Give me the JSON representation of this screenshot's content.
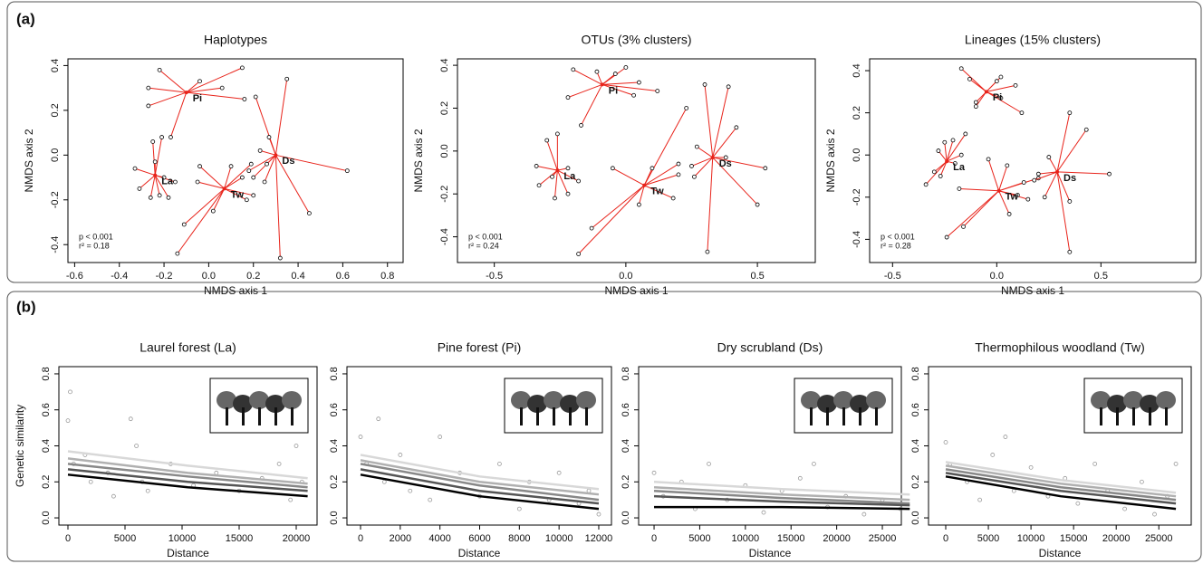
{
  "panel_labels": [
    "(a)",
    "(b)"
  ],
  "chart_data": [
    {
      "type": "nmds",
      "title": "Haplotypes",
      "xlabel": "NMDS axis 1",
      "ylabel": "NMDS axis 2",
      "color": "#e8231a",
      "xlim": [
        -0.63,
        0.87
      ],
      "ylim": [
        -0.48,
        0.43
      ],
      "xticks": [
        -0.6,
        -0.4,
        -0.2,
        {
          "value": 0,
          "label": "0.0"
        },
        0.2,
        0.4,
        0.6,
        0.8
      ],
      "yticks": [
        -0.4,
        -0.2,
        {
          "value": 0,
          "label": "0.0"
        },
        0.2,
        0.4
      ],
      "annotations": [
        "p < 0.001",
        "r² = 0.18"
      ],
      "groups": [
        {
          "name": "Pi",
          "centroid": [
            -0.1,
            0.28
          ],
          "x": [
            -0.22,
            0.15,
            -0.27,
            -0.27,
            0.06,
            0.16,
            -0.04,
            -0.17
          ],
          "y": [
            0.38,
            0.39,
            0.3,
            0.22,
            0.3,
            0.25,
            0.33,
            0.08
          ]
        },
        {
          "name": "La",
          "centroid": [
            -0.24,
            -0.09
          ],
          "x": [
            -0.25,
            -0.21,
            -0.33,
            -0.31,
            -0.26,
            -0.22,
            -0.18,
            -0.15,
            -0.2,
            -0.24
          ],
          "y": [
            0.06,
            0.08,
            -0.06,
            -0.15,
            -0.19,
            -0.18,
            -0.19,
            -0.12,
            -0.1,
            -0.03
          ]
        },
        {
          "name": "Tw",
          "centroid": [
            0.07,
            -0.15
          ],
          "x": [
            -0.04,
            0.1,
            0.19,
            -0.11,
            -0.14,
            0.17,
            0.02,
            -0.05,
            0.15,
            0.2
          ],
          "y": [
            -0.05,
            -0.05,
            -0.04,
            -0.31,
            -0.44,
            -0.2,
            -0.25,
            -0.12,
            -0.1,
            -0.18
          ]
        },
        {
          "name": "Ds",
          "centroid": [
            0.3,
            0.0
          ],
          "x": [
            0.21,
            0.35,
            0.62,
            0.45,
            0.32,
            0.25,
            0.2,
            0.26,
            0.18,
            0.23,
            0.27
          ],
          "y": [
            0.26,
            0.34,
            -0.07,
            -0.26,
            -0.46,
            -0.12,
            -0.1,
            -0.04,
            -0.07,
            0.02,
            0.08
          ]
        }
      ]
    },
    {
      "type": "nmds",
      "title": "OTUs (3% clusters)",
      "xlabel": "NMDS axis 1",
      "ylabel": "NMDS axis 2",
      "color": "#e8231a",
      "xlim": [
        -0.64,
        0.72
      ],
      "ylim": [
        -0.52,
        0.43
      ],
      "xticks": [
        -0.5,
        {
          "value": 0,
          "label": "0.0"
        },
        0.5
      ],
      "yticks": [
        -0.4,
        -0.2,
        {
          "value": 0,
          "label": "0.0"
        },
        0.2,
        0.4
      ],
      "annotations": [
        "p < 0.001",
        "r² = 0.24"
      ],
      "groups": [
        {
          "name": "Pi",
          "centroid": [
            -0.09,
            0.31
          ],
          "x": [
            -0.2,
            0.0,
            -0.22,
            -0.11,
            0.05,
            0.12,
            -0.04,
            -0.17,
            0.03
          ],
          "y": [
            0.38,
            0.39,
            0.25,
            0.37,
            0.32,
            0.28,
            0.36,
            0.12,
            0.26
          ]
        },
        {
          "name": "La",
          "centroid": [
            -0.26,
            -0.09
          ],
          "x": [
            -0.3,
            -0.26,
            -0.34,
            -0.33,
            -0.27,
            -0.22,
            -0.18,
            -0.22,
            -0.28
          ],
          "y": [
            0.05,
            0.08,
            -0.07,
            -0.16,
            -0.22,
            -0.2,
            -0.14,
            -0.08,
            -0.12
          ]
        },
        {
          "name": "Tw",
          "centroid": [
            0.07,
            -0.16
          ],
          "x": [
            -0.05,
            0.1,
            0.2,
            -0.13,
            -0.18,
            0.18,
            0.05,
            0.2,
            0.23
          ],
          "y": [
            -0.08,
            -0.08,
            -0.06,
            -0.36,
            -0.48,
            -0.22,
            -0.25,
            -0.11,
            0.2
          ]
        },
        {
          "name": "Ds",
          "centroid": [
            0.33,
            -0.03
          ],
          "x": [
            0.3,
            0.39,
            0.53,
            0.5,
            0.31,
            0.42,
            0.25,
            0.27,
            0.26,
            0.38
          ],
          "y": [
            0.31,
            0.3,
            -0.08,
            -0.25,
            -0.47,
            0.11,
            -0.07,
            0.02,
            -0.12,
            -0.03
          ]
        }
      ]
    },
    {
      "type": "nmds",
      "title": "Lineages (15% clusters)",
      "xlabel": "NMDS axis 1",
      "ylabel": "NMDS axis 2",
      "color": "#e8231a",
      "xlim": [
        -0.61,
        0.955
      ],
      "ylim": [
        -0.51,
        0.456
      ],
      "xticks": [
        -0.5,
        {
          "value": 0,
          "label": "0.0"
        },
        0.5
      ],
      "yticks": [
        -0.4,
        -0.2,
        {
          "value": 0,
          "label": "0.0"
        },
        0.2,
        0.4
      ],
      "annotations": [
        "p < 0.001",
        "r² = 0.28"
      ],
      "groups": [
        {
          "name": "Pi",
          "centroid": [
            -0.05,
            0.3
          ],
          "x": [
            -0.17,
            0.02,
            -0.1,
            -0.13,
            0.09,
            0.12,
            0.0,
            -0.1,
            0.02
          ],
          "y": [
            0.41,
            0.37,
            0.25,
            0.36,
            0.33,
            0.2,
            0.35,
            0.23,
            0.27
          ]
        },
        {
          "name": "La",
          "centroid": [
            -0.24,
            -0.03
          ],
          "x": [
            -0.25,
            -0.21,
            -0.34,
            -0.3,
            -0.27,
            -0.2,
            -0.17,
            -0.15,
            -0.28
          ],
          "y": [
            0.06,
            0.07,
            -0.14,
            -0.08,
            -0.1,
            -0.04,
            0.0,
            0.1,
            0.02
          ]
        },
        {
          "name": "Tw",
          "centroid": [
            0.01,
            -0.17
          ],
          "x": [
            -0.04,
            -0.18,
            -0.16,
            -0.24,
            0.06,
            0.15,
            0.13,
            0.1,
            0.2,
            0.05
          ],
          "y": [
            -0.02,
            -0.16,
            -0.34,
            -0.39,
            -0.28,
            -0.21,
            -0.13,
            -0.19,
            -0.11,
            -0.05
          ]
        },
        {
          "name": "Ds",
          "centroid": [
            0.29,
            -0.08
          ],
          "x": [
            0.35,
            0.43,
            0.54,
            0.35,
            0.35,
            0.2,
            0.25,
            0.18,
            0.23
          ],
          "y": [
            0.2,
            0.12,
            -0.09,
            -0.22,
            -0.46,
            -0.09,
            -0.01,
            -0.12,
            -0.2
          ]
        }
      ]
    },
    {
      "type": "decay",
      "title": "Laurel forest (La)",
      "xlabel": "Distance",
      "ylabel": "Genetic similarity",
      "xlim": [
        -794,
        21825
      ],
      "ylim": [
        -0.04,
        0.84
      ],
      "xticks": [
        0,
        5000,
        10000,
        15000,
        20000
      ],
      "yticks": [
        {
          "value": 0,
          "label": "0.0"
        },
        0.2,
        0.4,
        0.6,
        0.8
      ],
      "points": {
        "color": "#9a9a9a",
        "x": [
          0,
          200,
          500,
          1500,
          2000,
          3500,
          4000,
          5500,
          6000,
          6500,
          7000,
          9000,
          11000,
          13000,
          15000,
          17000,
          18500,
          19500,
          20000,
          20500
        ],
        "y": [
          0.54,
          0.7,
          0.3,
          0.35,
          0.2,
          0.25,
          0.12,
          0.55,
          0.4,
          0.2,
          0.15,
          0.3,
          0.18,
          0.25,
          0.15,
          0.22,
          0.3,
          0.1,
          0.4,
          0.2
        ]
      },
      "series": [
        {
          "color": "#d8d8d8",
          "x": [
            0,
            10500,
            21000
          ],
          "values": [
            0.37,
            0.29,
            0.22
          ]
        },
        {
          "color": "#b0b0b0",
          "x": [
            0,
            10500,
            21000
          ],
          "values": [
            0.33,
            0.25,
            0.19
          ]
        },
        {
          "color": "#888888",
          "x": [
            0,
            10500,
            21000
          ],
          "values": [
            0.3,
            0.23,
            0.17
          ]
        },
        {
          "color": "#555555",
          "x": [
            0,
            10500,
            21000
          ],
          "values": [
            0.27,
            0.2,
            0.15
          ]
        },
        {
          "color": "#000000",
          "x": [
            0,
            10500,
            21000
          ],
          "values": [
            0.24,
            0.17,
            0.12
          ]
        }
      ]
    },
    {
      "type": "decay",
      "title": "Pine forest (Pi)",
      "xlabel": "Distance",
      "xlim": [
        -685,
        12640
      ],
      "ylim": [
        -0.04,
        0.84
      ],
      "xticks": [
        0,
        2000,
        4000,
        6000,
        8000,
        10000,
        12000
      ],
      "yticks": [
        {
          "value": 0,
          "label": "0.0"
        },
        0.2,
        0.4,
        0.6,
        0.8
      ],
      "points": {
        "color": "#9a9a9a",
        "x": [
          0,
          300,
          900,
          1200,
          2000,
          2500,
          3500,
          4000,
          5000,
          6000,
          7000,
          8000,
          8500,
          9500,
          10000,
          11000,
          11500,
          12000
        ],
        "y": [
          0.45,
          0.3,
          0.55,
          0.2,
          0.35,
          0.15,
          0.1,
          0.45,
          0.25,
          0.12,
          0.3,
          0.05,
          0.2,
          0.1,
          0.25,
          0.08,
          0.15,
          0.02
        ]
      },
      "series": [
        {
          "color": "#d8d8d8",
          "x": [
            0,
            6000,
            12000
          ],
          "values": [
            0.35,
            0.23,
            0.16
          ]
        },
        {
          "color": "#b0b0b0",
          "x": [
            0,
            6000,
            12000
          ],
          "values": [
            0.32,
            0.2,
            0.13
          ]
        },
        {
          "color": "#888888",
          "x": [
            0,
            6000,
            12000
          ],
          "values": [
            0.3,
            0.18,
            0.1
          ]
        },
        {
          "color": "#555555",
          "x": [
            0,
            6000,
            12000
          ],
          "values": [
            0.27,
            0.15,
            0.08
          ]
        },
        {
          "color": "#000000",
          "x": [
            0,
            6000,
            12000
          ],
          "values": [
            0.24,
            0.12,
            0.05
          ]
        }
      ]
    },
    {
      "type": "decay",
      "title": "Dry scrubland (Ds)",
      "xlabel": "Distance",
      "xlim": [
        -1690,
        27080
      ],
      "ylim": [
        -0.04,
        0.84
      ],
      "xticks": [
        0,
        5000,
        10000,
        15000,
        20000,
        25000
      ],
      "yticks": [
        {
          "value": 0,
          "label": "0.0"
        },
        0.2,
        0.4,
        0.6,
        0.8
      ],
      "points": {
        "color": "#9a9a9a",
        "x": [
          0,
          1000,
          3000,
          4500,
          6000,
          8000,
          10000,
          12000,
          14000,
          16000,
          17500,
          19000,
          21000,
          23000,
          25000,
          27000
        ],
        "y": [
          0.25,
          0.12,
          0.2,
          0.05,
          0.3,
          0.1,
          0.18,
          0.03,
          0.15,
          0.22,
          0.3,
          0.06,
          0.12,
          0.02,
          0.1,
          0.05
        ]
      },
      "series": [
        {
          "color": "#d8d8d8",
          "x": [
            0,
            14000,
            28000
          ],
          "values": [
            0.2,
            0.16,
            0.13
          ]
        },
        {
          "color": "#b0b0b0",
          "x": [
            0,
            14000,
            28000
          ],
          "values": [
            0.17,
            0.13,
            0.1
          ]
        },
        {
          "color": "#888888",
          "x": [
            0,
            14000,
            28000
          ],
          "values": [
            0.15,
            0.11,
            0.08
          ]
        },
        {
          "color": "#555555",
          "x": [
            0,
            14000,
            28000
          ],
          "values": [
            0.12,
            0.09,
            0.07
          ]
        },
        {
          "color": "#000000",
          "x": [
            0,
            14000,
            28000
          ],
          "values": [
            0.06,
            0.06,
            0.05
          ]
        }
      ]
    },
    {
      "type": "decay",
      "title": "Thermophilous woodland (Tw)",
      "xlabel": "Distance",
      "xlim": [
        -2020,
        28800
      ],
      "ylim": [
        -0.04,
        0.84
      ],
      "xticks": [
        0,
        5000,
        10000,
        15000,
        20000,
        25000
      ],
      "yticks": [
        {
          "value": 0,
          "label": "0.0"
        },
        0.2,
        0.4,
        0.6,
        0.8
      ],
      "points": {
        "color": "#9a9a9a",
        "x": [
          0,
          500,
          2500,
          4000,
          5500,
          7000,
          8000,
          10000,
          12000,
          14000,
          15500,
          17500,
          19000,
          21000,
          23000,
          24500,
          26000,
          27000
        ],
        "y": [
          0.42,
          0.3,
          0.2,
          0.1,
          0.35,
          0.45,
          0.15,
          0.28,
          0.12,
          0.22,
          0.08,
          0.3,
          0.15,
          0.05,
          0.2,
          0.02,
          0.12,
          0.3
        ]
      },
      "series": [
        {
          "color": "#d8d8d8",
          "x": [
            0,
            13500,
            27000
          ],
          "values": [
            0.31,
            0.21,
            0.14
          ]
        },
        {
          "color": "#b0b0b0",
          "x": [
            0,
            13500,
            27000
          ],
          "values": [
            0.29,
            0.19,
            0.12
          ]
        },
        {
          "color": "#888888",
          "x": [
            0,
            13500,
            27000
          ],
          "values": [
            0.27,
            0.17,
            0.1
          ]
        },
        {
          "color": "#555555",
          "x": [
            0,
            13500,
            27000
          ],
          "values": [
            0.25,
            0.15,
            0.08
          ]
        },
        {
          "color": "#000000",
          "x": [
            0,
            13500,
            27000
          ],
          "values": [
            0.23,
            0.12,
            0.05
          ]
        }
      ]
    }
  ]
}
